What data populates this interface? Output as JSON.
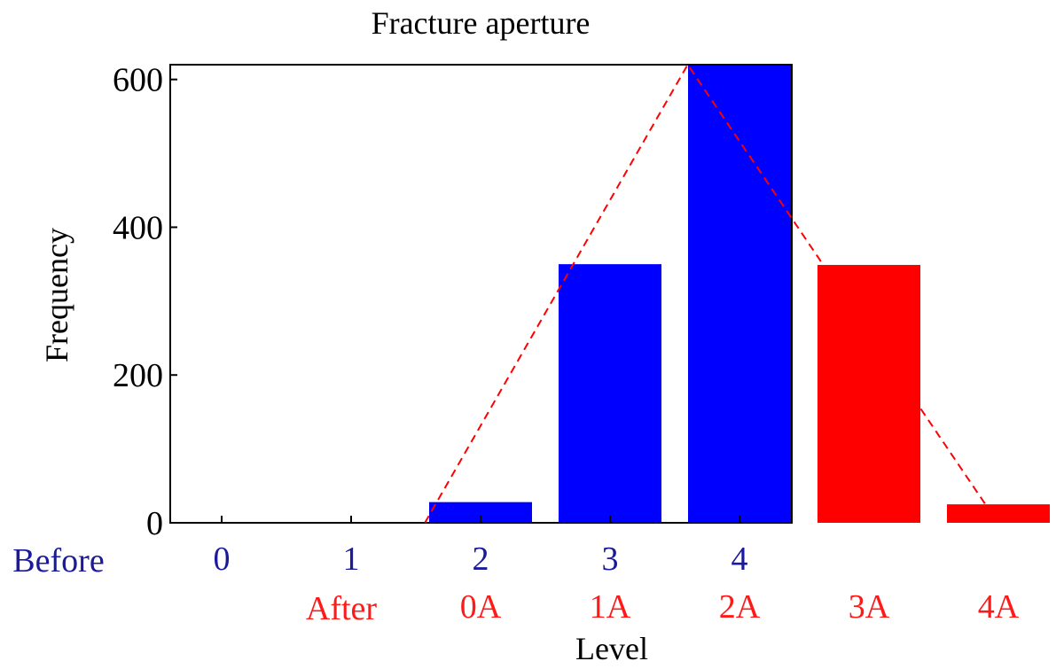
{
  "chart_data": {
    "type": "bar",
    "title": "Fracture aperture",
    "xlabel": "Level",
    "ylabel": "Frequency",
    "ylim": [
      0,
      620
    ],
    "yticks": [
      "0",
      "200",
      "400",
      "600"
    ],
    "row_labels": {
      "before": "Before",
      "after": "After"
    },
    "before_ticks": [
      "0",
      "1",
      "2",
      "3",
      "4"
    ],
    "after_ticks": [
      "0A",
      "1A",
      "2A",
      "3A",
      "4A"
    ],
    "series": [
      {
        "values": [
          0,
          0,
          28,
          350,
          620,
          0,
          0
        ]
      },
      {
        "values": [
          0,
          0,
          0,
          0,
          0,
          349,
          25
        ]
      }
    ],
    "trend_line": {
      "x": [
        1.57,
        3.6,
        5.9
      ],
      "y": [
        0,
        620,
        25
      ]
    },
    "colors": {
      "before": "#1a1a9a",
      "after": "#ff1a1a",
      "before_bar": "#0000ff",
      "after_bar": "#ff0000",
      "axis": "#000000"
    }
  }
}
